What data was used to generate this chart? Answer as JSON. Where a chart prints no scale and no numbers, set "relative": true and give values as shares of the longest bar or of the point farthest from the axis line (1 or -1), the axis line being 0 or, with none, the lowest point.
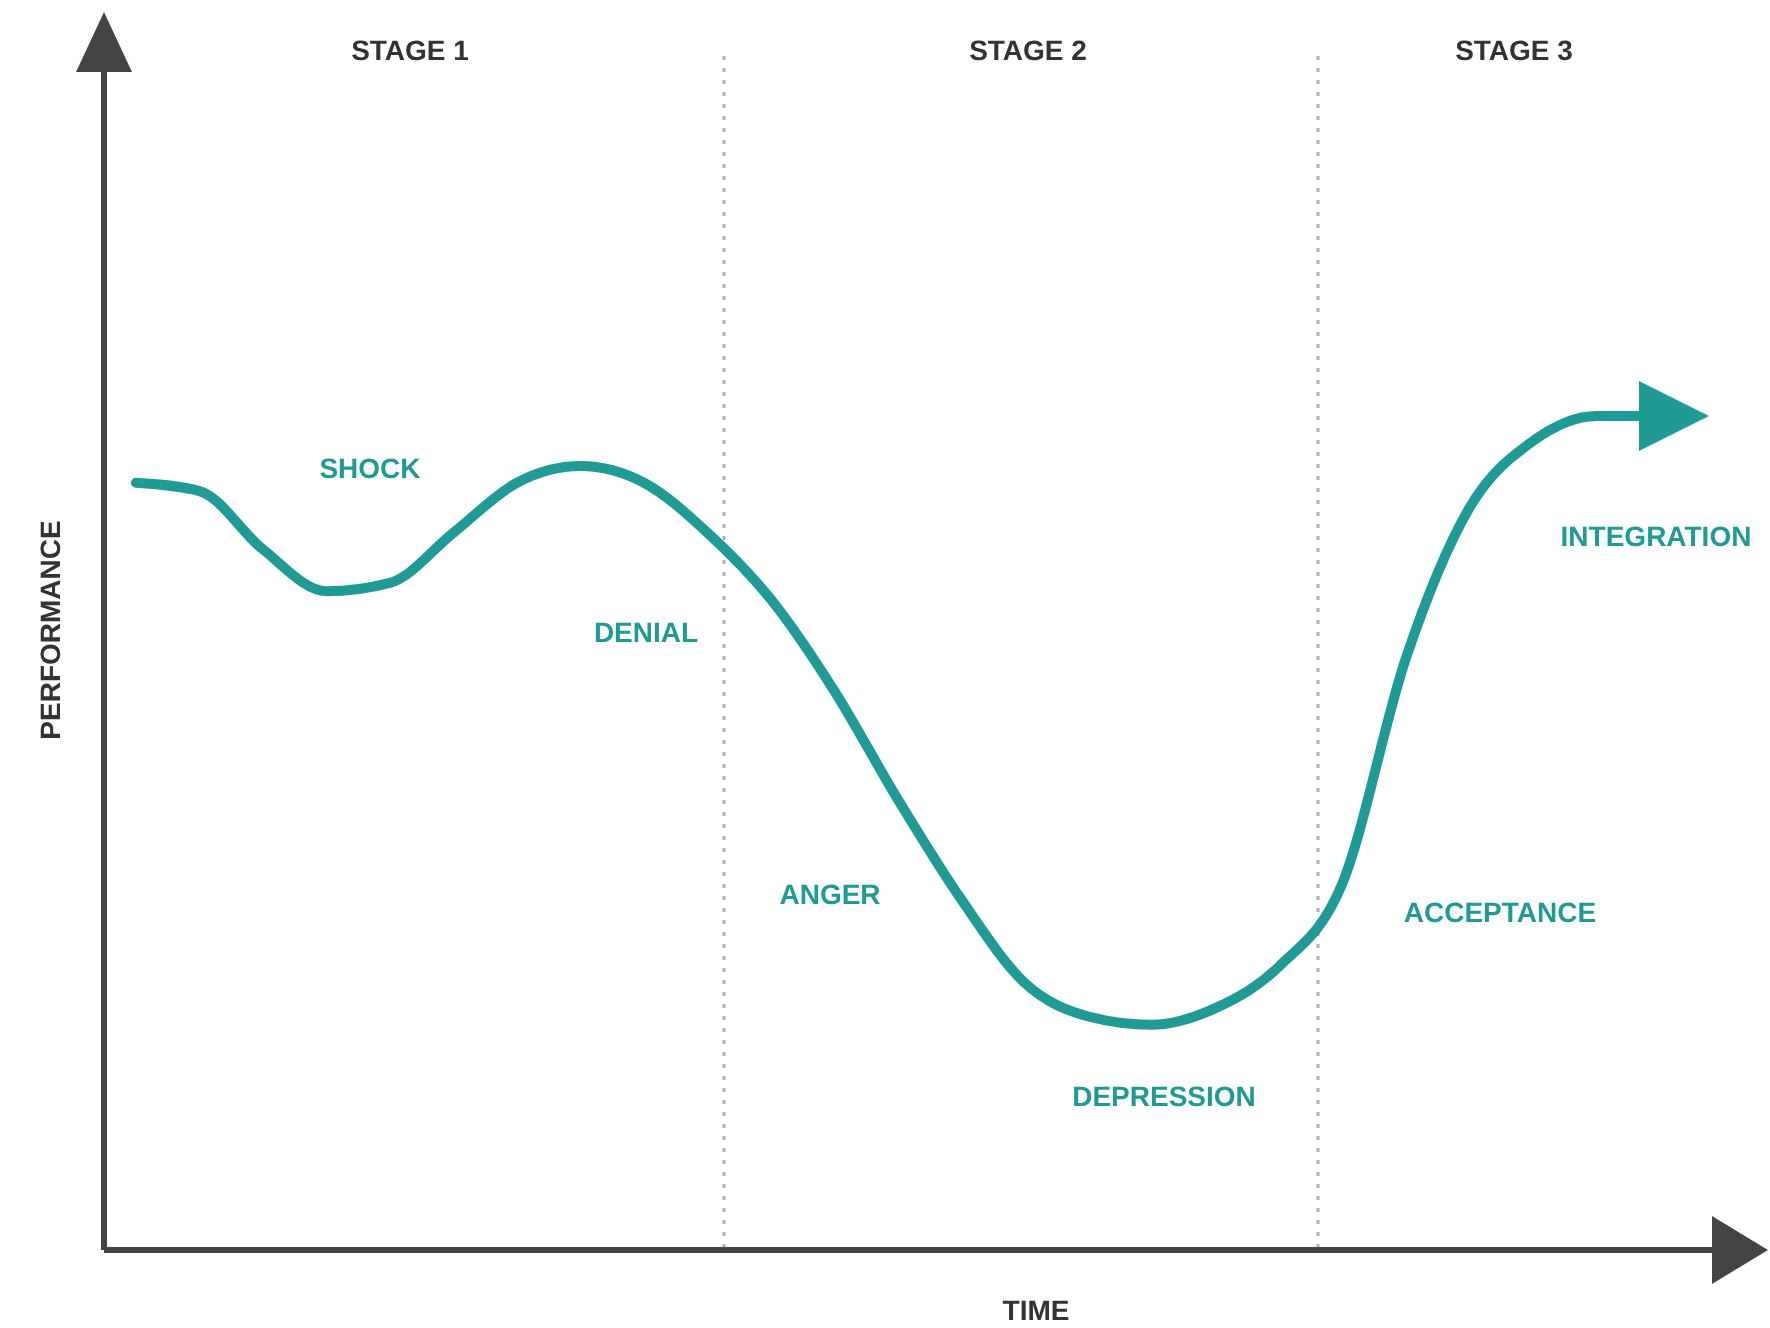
{
  "chart_data": {
    "type": "line",
    "relative": true,
    "xlabel": "TIME",
    "ylabel": "PERFORMANCE",
    "categories": [
      null,
      null,
      null,
      null,
      null,
      null,
      null,
      null,
      null,
      null,
      null,
      null,
      null,
      null,
      null,
      null,
      null,
      null,
      null,
      null,
      null,
      null,
      null,
      null,
      null
    ],
    "series": [
      {
        "color": "#1f9a94",
        "values": [
          0.92,
          0.91,
          0.84,
          0.79,
          0.8,
          0.86,
          0.92,
          0.94,
          0.92,
          0.86,
          0.78,
          0.67,
          0.54,
          0.42,
          0.32,
          0.28,
          0.27,
          0.29,
          0.34,
          0.44,
          0.71,
          0.89,
          0.97,
          1.0,
          1.0
        ]
      }
    ],
    "annotations": [
      "STAGE 1",
      "STAGE 2",
      "STAGE 3",
      "SHOCK",
      "DENIAL",
      "ANGER",
      "DEPRESSION",
      "ACCEPTANCE",
      "INTEGRATION"
    ],
    "marker": "none",
    "line_style": "solid"
  }
}
